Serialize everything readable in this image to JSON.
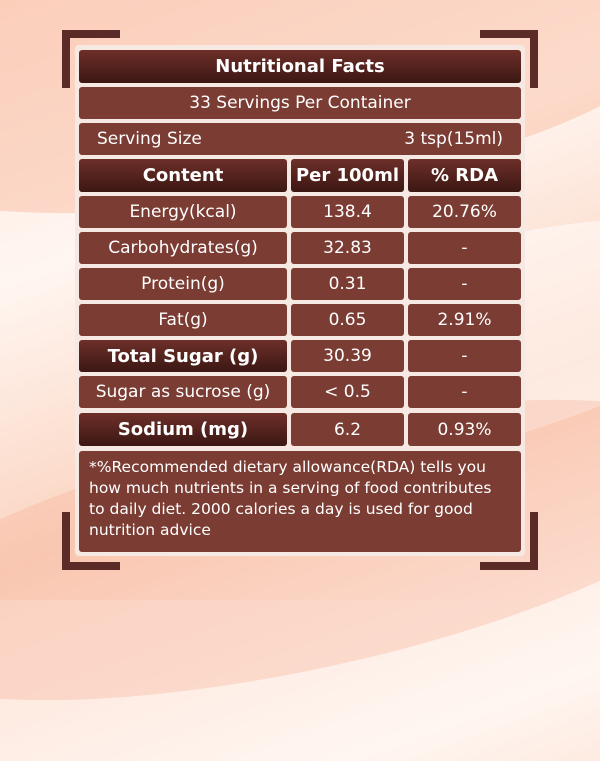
{
  "title": "Nutritional Facts",
  "servings": "33 Servings Per Container",
  "serving_size": {
    "label": "Serving Size",
    "value": "3  tsp(15ml)"
  },
  "headers": [
    "Content",
    "Per 100ml",
    "% RDA"
  ],
  "rows": [
    {
      "name": "Energy(kcal)",
      "per100": "138.4",
      "rda": "20.76%"
    },
    {
      "name": "Carbohydrates(g)",
      "per100": "32.83",
      "rda": "-"
    },
    {
      "name": "Protein(g)",
      "per100": "0.31",
      "rda": "-"
    },
    {
      "name": "Fat(g)",
      "per100": "0.65",
      "rda": "2.91%"
    },
    {
      "name": "Total Sugar (g)",
      "per100": "30.39",
      "rda": "-"
    },
    {
      "name": "Sugar as sucrose (g)",
      "per100": "< 0.5",
      "rda": "-"
    },
    {
      "name": "Sodium (mg)",
      "per100": "6.2",
      "rda": "0.93%"
    }
  ],
  "footnote": "*%Recommended dietary allowance(RDA) tells you how much nutrients in a serving of food contributes to daily diet. 2000 calories a day is used for good nutrition advice",
  "colors": {
    "cell": "#7b3c33",
    "header": "#3b1713",
    "frame": "#5a2b27"
  }
}
